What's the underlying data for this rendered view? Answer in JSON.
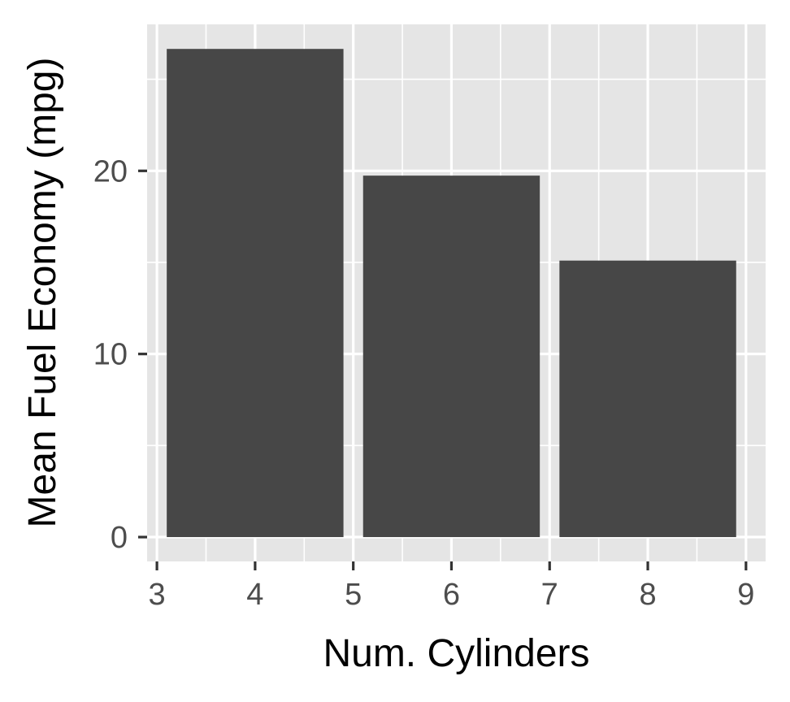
{
  "chart_data": {
    "type": "bar",
    "categories": [
      4,
      6,
      8
    ],
    "values": [
      26.66,
      19.74,
      15.1
    ],
    "bar_width": 1.8,
    "xlabel": "Num. Cylinders",
    "ylabel": "Mean Fuel Economy (mpg)",
    "xlim": [
      2.9,
      9.2
    ],
    "ylim": [
      -1.33,
      28.0
    ],
    "x_major_ticks": [
      3,
      4,
      5,
      6,
      7,
      8,
      9
    ],
    "x_tick_labels": [
      "3",
      "4",
      "5",
      "6",
      "7",
      "8",
      "9"
    ],
    "x_minor_ticks": [
      3.5,
      4.5,
      5.5,
      6.5,
      7.5,
      8.5
    ],
    "y_major_ticks": [
      0,
      10,
      20
    ],
    "y_tick_labels": [
      "0",
      "10",
      "20"
    ],
    "y_minor_ticks": [
      5,
      15,
      25
    ],
    "grid": true,
    "legend": "none",
    "colors": {
      "bar": "#474747",
      "panel": "#e5e5e5",
      "grid": "#ffffff",
      "tick": "#333333",
      "tick_label": "#4d4d4d",
      "axis_title": "#000000"
    }
  }
}
